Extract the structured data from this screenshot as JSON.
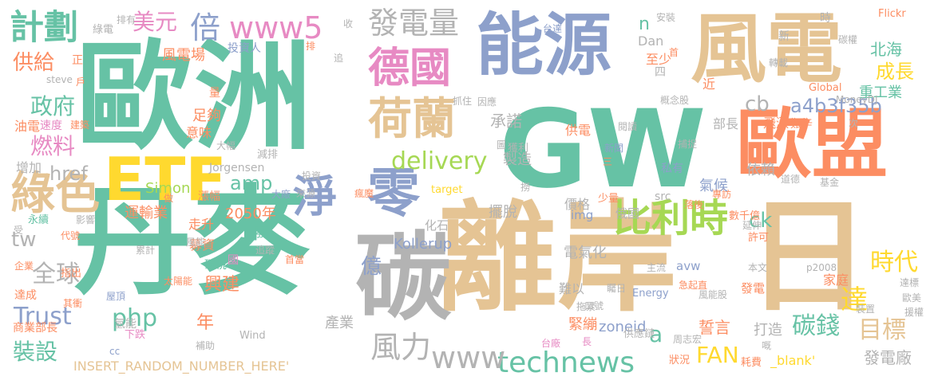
{
  "palette": {
    "green": "#6cc8a6",
    "sand": "#e3c59a",
    "coral": "#f79a7a",
    "gray": "#b0b0b0",
    "blue": "#8da0cb",
    "pink": "#e78ac3",
    "lime": "#a6d854",
    "yellow": "#ffd94a"
  },
  "words": [
    {
      "text": "歐洲",
      "color": "#66c2a5"
    },
    {
      "text": "丹麥",
      "color": "#66c2a5"
    },
    {
      "text": "離岸",
      "color": "#e5c494"
    },
    {
      "text": "GW",
      "color": "#66c2a5"
    },
    {
      "text": "能源",
      "color": "#8da0cb"
    },
    {
      "text": "風電",
      "color": "#e5c494"
    },
    {
      "text": "歐盟",
      "color": "#fc8d62"
    },
    {
      "text": "日",
      "color": "#e5c494"
    },
    {
      "text": "碳",
      "color": "#b3b3b3"
    },
    {
      "text": "ETF",
      "color": "#ffd92f"
    },
    {
      "text": "綠色",
      "color": "#e5c494"
    },
    {
      "text": "零",
      "color": "#8da0cb"
    },
    {
      "text": "淨",
      "color": "#8da0cb"
    },
    {
      "text": "荷蘭",
      "color": "#e5c494"
    },
    {
      "text": "德國",
      "color": "#e78ac3"
    },
    {
      "text": "比利時",
      "color": "#a6d854"
    },
    {
      "text": "發電量",
      "color": "#b3b3b3"
    },
    {
      "text": "計劃",
      "color": "#66c2a5"
    },
    {
      "text": "www5",
      "color": "#e78ac3"
    },
    {
      "text": "倍",
      "color": "#8da0cb"
    },
    {
      "text": "美元",
      "color": "#e78ac3"
    },
    {
      "text": "technews",
      "color": "#66c2a5"
    },
    {
      "text": "www",
      "color": "#b3b3b3"
    },
    {
      "text": "風力",
      "color": "#b3b3b3"
    },
    {
      "text": "delivery",
      "color": "#a6d854"
    },
    {
      "text": "全球",
      "color": "#b3b3b3"
    },
    {
      "text": "Trust",
      "color": "#8da0cb"
    },
    {
      "text": "php",
      "color": "#66c2a5"
    },
    {
      "text": "碳錢",
      "color": "#66c2a5"
    },
    {
      "text": "時代",
      "color": "#ffd92f"
    },
    {
      "text": "目標",
      "color": "#e5c494"
    },
    {
      "text": "政府",
      "color": "#66c2a5"
    },
    {
      "text": "燃料",
      "color": "#e78ac3"
    },
    {
      "text": "供給",
      "color": "#fc8d62"
    },
    {
      "text": "裝設",
      "color": "#66c2a5"
    },
    {
      "text": "FAN",
      "color": "#ffd92f"
    },
    {
      "text": "達",
      "color": "#ffd92f"
    },
    {
      "text": "成長",
      "color": "#ffd92f"
    },
    {
      "text": "a4b3f35b",
      "color": "#8da0cb"
    },
    {
      "text": "北海",
      "color": "#66c2a5"
    },
    {
      "text": "重工業",
      "color": "#66c2a5"
    },
    {
      "text": "發電廠",
      "color": "#b3b3b3"
    },
    {
      "text": "打造",
      "color": "#b3b3b3"
    },
    {
      "text": "承諾",
      "color": "#b3b3b3"
    },
    {
      "text": "億",
      "color": "#8da0cb"
    },
    {
      "text": "cb",
      "color": "#b3b3b3"
    },
    {
      "text": "ck",
      "color": "#66c2a5"
    },
    {
      "text": "tw",
      "color": "#b3b3b3"
    },
    {
      "text": "href",
      "color": "#b3b3b3"
    },
    {
      "text": "amp",
      "color": "#66c2a5"
    },
    {
      "text": "2050年",
      "color": "#fc8d62"
    },
    {
      "text": "部長",
      "color": "#b3b3b3"
    },
    {
      "text": "年",
      "color": "#fc8d62"
    },
    {
      "text": "興建",
      "color": "#fc8d62"
    },
    {
      "text": "電氣化",
      "color": "#b3b3b3"
    },
    {
      "text": "價格",
      "color": "#b3b3b3"
    },
    {
      "text": "氣候",
      "color": "#8da0cb"
    },
    {
      "text": "依賴",
      "color": "#b3b3b3"
    },
    {
      "text": "擺脫",
      "color": "#b3b3b3"
    },
    {
      "text": "製造",
      "color": "#b3b3b3"
    },
    {
      "text": "供電",
      "color": "#fc8d62"
    },
    {
      "text": "n",
      "color": "#66c2a5"
    },
    {
      "text": "Dan",
      "color": "#b3b3b3"
    },
    {
      "text": "至少",
      "color": "#fc8d62"
    },
    {
      "text": "近",
      "color": "#fc8d62"
    },
    {
      "text": "a",
      "color": "#66c2a5"
    },
    {
      "text": "誓言",
      "color": "#fc8d62"
    },
    {
      "text": "zoneid",
      "color": "#8da0cb"
    },
    {
      "text": "緊繃",
      "color": "#fc8d62"
    },
    {
      "text": "Kollerup",
      "color": "#8da0cb"
    },
    {
      "text": "產業",
      "color": "#b3b3b3"
    },
    {
      "text": "運輸業",
      "color": "#fc8d62"
    },
    {
      "text": "Simon",
      "color": "#a6d854"
    },
    {
      "text": "油電",
      "color": "#fc8d62"
    },
    {
      "text": "速度",
      "color": "#e78ac3"
    },
    {
      "text": "建築",
      "color": "#fc8d62"
    },
    {
      "text": "風電場",
      "color": "#fc8d62"
    },
    {
      "text": "投資人",
      "color": "#8da0cb"
    },
    {
      "text": "足夠",
      "color": "#fc8d62"
    },
    {
      "text": "意味",
      "color": "#fc8d62"
    },
    {
      "text": "增加",
      "color": "#b3b3b3"
    },
    {
      "text": "Jorgensen",
      "color": "#b3b3b3"
    },
    {
      "text": "減排",
      "color": "#b3b3b3"
    },
    {
      "text": "漲幅",
      "color": "#fc8d62"
    },
    {
      "text": "走升",
      "color": "#fc8d62"
    },
    {
      "text": "募資",
      "color": "#fc8d62"
    },
    {
      "text": "碳稅",
      "color": "#66c2a5"
    },
    {
      "text": "國",
      "color": "#e78ac3"
    },
    {
      "text": "廢",
      "color": "#66c2a5"
    },
    {
      "text": "化石",
      "color": "#b3b3b3"
    },
    {
      "text": "src",
      "color": "#b3b3b3"
    },
    {
      "text": "img",
      "color": "#8da0cb"
    },
    {
      "text": "俄國",
      "color": "#b3b3b3"
    },
    {
      "text": "家庭",
      "color": "#fc8d62"
    },
    {
      "text": "發電",
      "color": "#fc8d62"
    },
    {
      "text": "avw",
      "color": "#8da0cb"
    },
    {
      "text": "主流",
      "color": "#b3b3b3"
    },
    {
      "text": "急起直",
      "color": "#fc8d62"
    },
    {
      "text": "本文",
      "color": "#b3b3b3"
    },
    {
      "text": "p2008",
      "color": "#b3b3b3"
    },
    {
      "text": "Energy",
      "color": "#8da0cb"
    },
    {
      "text": "風能股",
      "color": "#b3b3b3"
    },
    {
      "text": "難以",
      "color": "#b3b3b3"
    },
    {
      "text": "拖累",
      "color": "#b3b3b3"
    },
    {
      "text": "供應鏈",
      "color": "#b3b3b3"
    },
    {
      "text": "周志宏",
      "color": "#b3b3b3"
    },
    {
      "text": "_blank'",
      "color": "#ffd92f"
    },
    {
      "text": "耗費",
      "color": "#fc8d62"
    },
    {
      "text": "狀況",
      "color": "#fc8d62"
    },
    {
      "text": "台廠",
      "color": "#e78ac3"
    },
    {
      "text": "長",
      "color": "#e78ac3"
    },
    {
      "text": "INSERT_RANDOM_NUMBER_HERE'",
      "color": "#e5c494"
    },
    {
      "text": "Wind",
      "color": "#b3b3b3"
    },
    {
      "text": "cc",
      "color": "#8da0cb"
    },
    {
      "text": "下跌",
      "color": "#e78ac3"
    },
    {
      "text": "補助",
      "color": "#b3b3b3"
    },
    {
      "text": "氫能",
      "color": "#b3b3b3"
    },
    {
      "text": "屋頂",
      "color": "#8da0cb"
    },
    {
      "text": "其衝",
      "color": "#fc8d62"
    },
    {
      "text": "達成",
      "color": "#fc8d62"
    },
    {
      "text": "商業部長",
      "color": "#fc8d62"
    },
    {
      "text": "指出",
      "color": "#fc8d62"
    },
    {
      "text": "企業",
      "color": "#fc8d62"
    },
    {
      "text": "代號",
      "color": "#fc8d62"
    },
    {
      "text": "永續",
      "color": "#66c2a5"
    },
    {
      "text": "受",
      "color": "#b3b3b3"
    },
    {
      "text": "影響",
      "color": "#b3b3b3"
    },
    {
      "text": "累計",
      "color": "#b3b3b3"
    },
    {
      "text": "風能",
      "color": "#b3b3b3"
    },
    {
      "text": "太陽能",
      "color": "#fc8d62"
    },
    {
      "text": "追蹤",
      "color": "#b3b3b3"
    },
    {
      "text": "首當",
      "color": "#fc8d62"
    },
    {
      "text": "大廠",
      "color": "#8da0cb"
    },
    {
      "text": "做",
      "color": "#fc8d62"
    },
    {
      "text": "投資",
      "color": "#b3b3b3"
    },
    {
      "text": "來源",
      "color": "#b3b3b3"
    },
    {
      "text": "瘋魔",
      "color": "#fc8d62"
    },
    {
      "text": "target",
      "color": "#ffd92f"
    },
    {
      "text": "撈",
      "color": "#b3b3b3"
    },
    {
      "text": "三",
      "color": "#fc8d62"
    },
    {
      "text": "少量",
      "color": "#fc8d62"
    },
    {
      "text": "落後",
      "color": "#fc8d62"
    },
    {
      "text": "專訪",
      "color": "#fc8d62"
    },
    {
      "text": "數千億",
      "color": "#fc8d62"
    },
    {
      "text": "許可",
      "color": "#fc8d62"
    },
    {
      "text": "延伸",
      "color": "#b3b3b3"
    },
    {
      "text": "基金",
      "color": "#b3b3b3"
    },
    {
      "text": "道德",
      "color": "#b3b3b3"
    },
    {
      "text": "私有",
      "color": "#8da0cb"
    },
    {
      "text": "新聞",
      "color": "#8da0cb"
    },
    {
      "text": "獲利",
      "color": "#b3b3b3"
    },
    {
      "text": "圖",
      "color": "#b3b3b3"
    },
    {
      "text": "因應",
      "color": "#b3b3b3"
    },
    {
      "text": "抓住",
      "color": "#b3b3b3"
    },
    {
      "text": "閱讀",
      "color": "#b3b3b3"
    },
    {
      "text": "捕捉",
      "color": "#b3b3b3"
    },
    {
      "text": "概念股",
      "color": "#b3b3b3"
    },
    {
      "text": "飛漲",
      "color": "#fc8d62"
    },
    {
      "text": "艱辛",
      "color": "#fc8d62"
    },
    {
      "text": "次",
      "color": "#b3b3b3"
    },
    {
      "text": "Global",
      "color": "#fc8d62"
    },
    {
      "text": "MoneyDJ",
      "color": "#b3b3b3"
    },
    {
      "text": "轉載",
      "color": "#b3b3b3"
    },
    {
      "text": "Flickr",
      "color": "#fc8d62"
    },
    {
      "text": "時",
      "color": "#b3b3b3"
    },
    {
      "text": "新",
      "color": "#b3b3b3"
    },
    {
      "text": "碳權",
      "color": "#b3b3b3"
    },
    {
      "text": "安裝",
      "color": "#b3b3b3"
    },
    {
      "text": "首",
      "color": "#fc8d62"
    },
    {
      "text": "四",
      "color": "#b3b3b3"
    },
    {
      "text": "台達",
      "color": "#8da0cb"
    },
    {
      "text": "收",
      "color": "#b3b3b3"
    },
    {
      "text": "排",
      "color": "#fc8d62"
    },
    {
      "text": "追",
      "color": "#b3b3b3"
    },
    {
      "text": "排有",
      "color": "#b3b3b3"
    },
    {
      "text": "綠電",
      "color": "#b3b3b3"
    },
    {
      "text": "正",
      "color": "#fc8d62"
    },
    {
      "text": "戶",
      "color": "#fc8d62"
    },
    {
      "text": "steve",
      "color": "#b3b3b3"
    },
    {
      "text": "量",
      "color": "#fc8d62"
    },
    {
      "text": "大幅",
      "color": "#b3b3b3"
    },
    {
      "text": "口號",
      "color": "#b3b3b3"
    },
    {
      "text": "矚日",
      "color": "#b3b3b3"
    },
    {
      "text": "裝置",
      "color": "#b3b3b3"
    },
    {
      "text": "達標",
      "color": "#b3b3b3"
    },
    {
      "text": "歐美",
      "color": "#b3b3b3"
    },
    {
      "text": "援權",
      "color": "#b3b3b3"
    },
    {
      "text": "嘅",
      "color": "#b3b3b3"
    }
  ]
}
